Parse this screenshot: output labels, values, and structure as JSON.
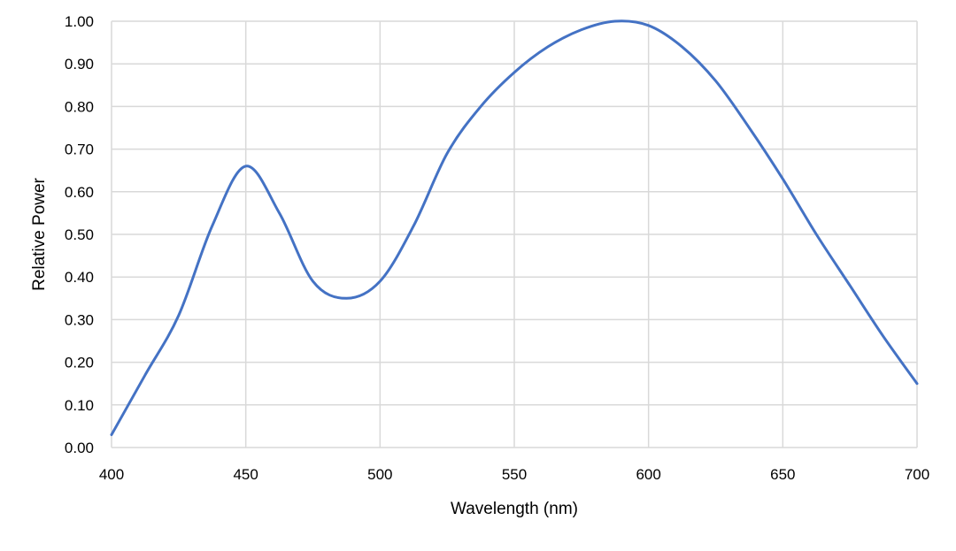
{
  "chart_data": {
    "type": "line",
    "title": "",
    "xlabel": "Wavelength (nm)",
    "ylabel": "Relative Power",
    "xlim": [
      400,
      700
    ],
    "ylim": [
      0,
      1
    ],
    "grid": true,
    "line_color": "#4472c4",
    "x_ticks": [
      400,
      450,
      500,
      550,
      600,
      650,
      700
    ],
    "x_tick_labels": [
      "400",
      "450",
      "500",
      "550",
      "600",
      "650",
      "700"
    ],
    "y_ticks": [
      0,
      0.1,
      0.2,
      0.3,
      0.4,
      0.5,
      0.6,
      0.7,
      0.8,
      0.9,
      1.0
    ],
    "y_tick_labels": [
      "0.00",
      "0.10",
      "0.20",
      "0.30",
      "0.40",
      "0.50",
      "0.60",
      "0.70",
      "0.80",
      "0.90",
      "1.00"
    ],
    "series": [
      {
        "x": [
          400,
          412.5,
          425,
          437.5,
          450,
          462.5,
          475,
          487.5,
          500,
          512.5,
          525,
          537.5,
          550,
          562.5,
          575,
          587.5,
          600,
          612.5,
          625,
          637.5,
          650,
          662.5,
          675,
          687.5,
          700
        ],
        "y": [
          0.03,
          0.17,
          0.31,
          0.52,
          0.66,
          0.55,
          0.39,
          0.35,
          0.39,
          0.52,
          0.69,
          0.8,
          0.88,
          0.94,
          0.98,
          1.0,
          0.99,
          0.94,
          0.86,
          0.75,
          0.63,
          0.5,
          0.38,
          0.26,
          0.15
        ]
      }
    ]
  }
}
